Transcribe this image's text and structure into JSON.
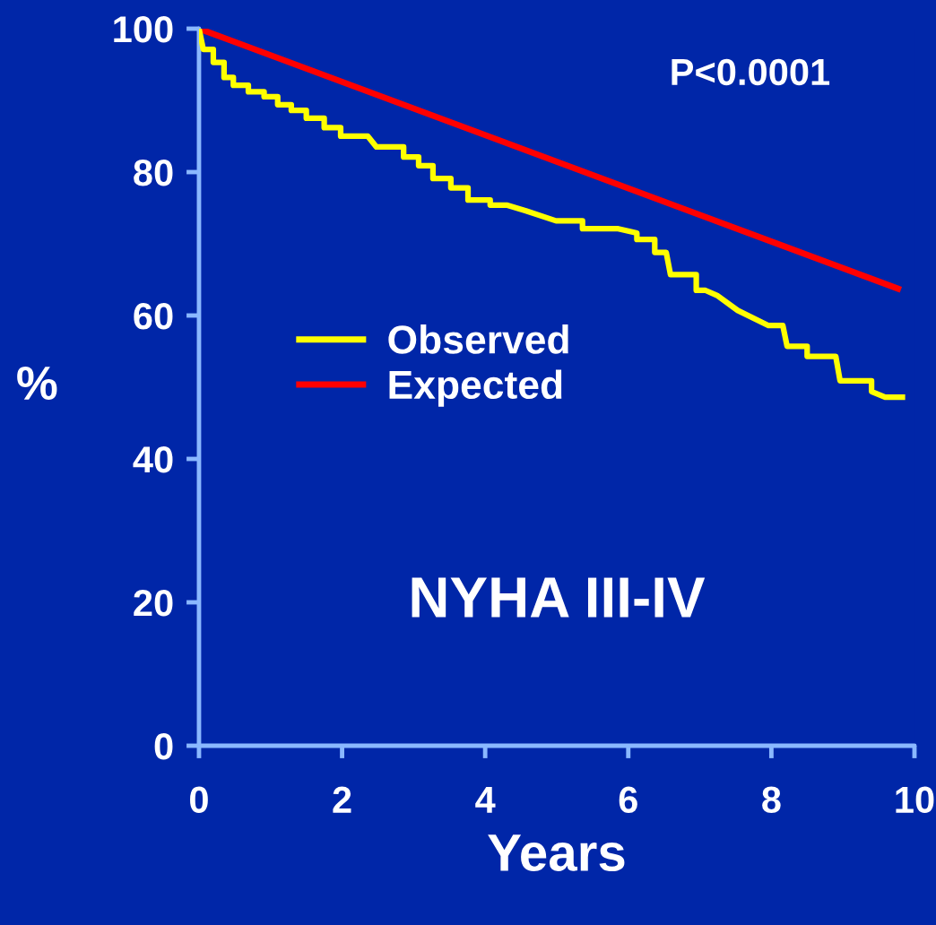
{
  "chart_data": {
    "type": "line",
    "xlabel": "Years",
    "ylabel": "%",
    "xlim": [
      0,
      10
    ],
    "ylim": [
      0,
      100
    ],
    "xticks": [
      0,
      2,
      4,
      6,
      8,
      10
    ],
    "yticks": [
      0,
      20,
      40,
      60,
      80,
      100
    ],
    "grid": false,
    "legend": "center left",
    "marker": "none",
    "line_style": "solid",
    "annotations": [
      "P<0.0001",
      "NYHA III-IV"
    ],
    "series": [
      {
        "name": "Observed",
        "color": "#ffff00",
        "x": [
          0,
          0.06,
          0.2,
          0.2,
          0.35,
          0.35,
          0.48,
          0.48,
          0.69,
          0.69,
          0.91,
          0.91,
          1.1,
          1.1,
          1.29,
          1.29,
          1.5,
          1.5,
          1.75,
          1.75,
          1.98,
          1.98,
          2.36,
          2.48,
          2.86,
          2.86,
          3.07,
          3.07,
          3.27,
          3.27,
          3.52,
          3.52,
          3.76,
          3.76,
          4.07,
          4.07,
          4.3,
          4.57,
          4.99,
          5.36,
          5.36,
          5.86,
          6.12,
          6.12,
          6.37,
          6.37,
          6.53,
          6.59,
          6.95,
          6.95,
          7.08,
          7.24,
          7.53,
          7.96,
          8.16,
          8.22,
          8.5,
          8.5,
          8.9,
          8.96,
          9.4,
          9.4,
          9.59,
          9.87
        ],
        "values": [
          100,
          97.1,
          97.1,
          95.3,
          95.3,
          93.2,
          93.2,
          92.1,
          92.1,
          91.2,
          91.2,
          90.5,
          90.5,
          89.4,
          89.4,
          88.6,
          88.6,
          87.5,
          87.5,
          86.2,
          86.2,
          85.0,
          85.0,
          83.5,
          83.5,
          82.1,
          82.1,
          80.9,
          80.9,
          79.1,
          79.1,
          77.8,
          77.8,
          76.1,
          76.1,
          75.4,
          75.4,
          74.6,
          73.2,
          73.2,
          72.1,
          72.1,
          71.5,
          70.6,
          70.6,
          68.8,
          68.8,
          65.7,
          65.7,
          63.5,
          63.5,
          62.8,
          60.7,
          58.6,
          58.6,
          55.7,
          55.7,
          54.3,
          54.3,
          50.9,
          50.9,
          49.4,
          48.6,
          48.6
        ]
      },
      {
        "name": "Expected",
        "color": "#ff0000",
        "x": [
          0,
          9.81
        ],
        "values": [
          100,
          63.6
        ]
      }
    ]
  }
}
